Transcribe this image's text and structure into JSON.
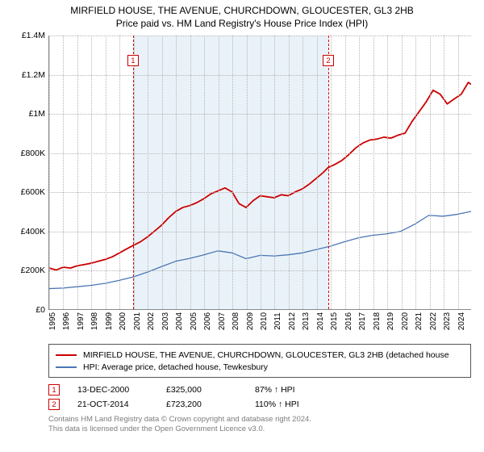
{
  "title": {
    "line1": "MIRFIELD HOUSE, THE AVENUE, CHURCHDOWN, GLOUCESTER, GL3 2HB",
    "line2": "Price paid vs. HM Land Registry's House Price Index (HPI)",
    "fontsize": 12,
    "color": "#000000"
  },
  "chart": {
    "type": "line",
    "background_color": "#ffffff",
    "grid_color": "#b5b5b5",
    "axis_color": "#888888",
    "shade_color": "#e3edf7",
    "xlim": [
      1995,
      2025
    ],
    "ylim": [
      0,
      1400000
    ],
    "ytick_step": 200000,
    "yticks": [
      {
        "v": 0,
        "label": "£0"
      },
      {
        "v": 200000,
        "label": "£200K"
      },
      {
        "v": 400000,
        "label": "£400K"
      },
      {
        "v": 600000,
        "label": "£600K"
      },
      {
        "v": 800000,
        "label": "£800K"
      },
      {
        "v": 1000000,
        "label": "£1M"
      },
      {
        "v": 1200000,
        "label": "£1.2M"
      },
      {
        "v": 1400000,
        "label": "£1.4M"
      }
    ],
    "xticks": [
      1995,
      1996,
      1997,
      1998,
      1999,
      2000,
      2001,
      2002,
      2003,
      2004,
      2005,
      2006,
      2007,
      2008,
      2009,
      2010,
      2011,
      2012,
      2013,
      2014,
      2015,
      2016,
      2017,
      2018,
      2019,
      2020,
      2021,
      2022,
      2023,
      2024
    ],
    "label_fontsize": 10.5,
    "shade_range": [
      2000.95,
      2014.81
    ],
    "events": [
      {
        "id": "1",
        "x": 2000.95,
        "marker_y": 24
      },
      {
        "id": "2",
        "x": 2014.81,
        "marker_y": 24
      }
    ],
    "event_line_color": "#cc0000",
    "series": [
      {
        "name": "price",
        "color": "#cc0000",
        "width": 1.8,
        "points": [
          [
            1995,
            210000
          ],
          [
            1995.5,
            200000
          ],
          [
            1996,
            215000
          ],
          [
            1996.5,
            210000
          ],
          [
            1997,
            222000
          ],
          [
            1997.5,
            228000
          ],
          [
            1998,
            235000
          ],
          [
            1998.5,
            245000
          ],
          [
            1999,
            255000
          ],
          [
            1999.5,
            268000
          ],
          [
            2000,
            288000
          ],
          [
            2000.5,
            308000
          ],
          [
            2000.95,
            325000
          ],
          [
            2001.5,
            345000
          ],
          [
            2002,
            370000
          ],
          [
            2002.5,
            400000
          ],
          [
            2003,
            430000
          ],
          [
            2003.5,
            468000
          ],
          [
            2004,
            500000
          ],
          [
            2004.5,
            520000
          ],
          [
            2005,
            530000
          ],
          [
            2005.5,
            545000
          ],
          [
            2006,
            565000
          ],
          [
            2006.5,
            590000
          ],
          [
            2007,
            605000
          ],
          [
            2007.5,
            620000
          ],
          [
            2008,
            600000
          ],
          [
            2008.5,
            540000
          ],
          [
            2009,
            520000
          ],
          [
            2009.5,
            555000
          ],
          [
            2010,
            580000
          ],
          [
            2010.5,
            575000
          ],
          [
            2011,
            570000
          ],
          [
            2011.5,
            585000
          ],
          [
            2012,
            580000
          ],
          [
            2012.5,
            600000
          ],
          [
            2013,
            615000
          ],
          [
            2013.5,
            640000
          ],
          [
            2014,
            670000
          ],
          [
            2014.5,
            700000
          ],
          [
            2014.81,
            723200
          ],
          [
            2015.3,
            740000
          ],
          [
            2015.8,
            760000
          ],
          [
            2016.3,
            790000
          ],
          [
            2016.8,
            825000
          ],
          [
            2017.3,
            850000
          ],
          [
            2017.8,
            865000
          ],
          [
            2018.3,
            870000
          ],
          [
            2018.8,
            880000
          ],
          [
            2019.3,
            875000
          ],
          [
            2019.8,
            890000
          ],
          [
            2020.3,
            900000
          ],
          [
            2020.8,
            960000
          ],
          [
            2021.3,
            1010000
          ],
          [
            2021.8,
            1060000
          ],
          [
            2022.3,
            1120000
          ],
          [
            2022.8,
            1100000
          ],
          [
            2023.3,
            1050000
          ],
          [
            2023.8,
            1075000
          ],
          [
            2024.3,
            1100000
          ],
          [
            2024.8,
            1160000
          ],
          [
            2025,
            1150000
          ]
        ]
      },
      {
        "name": "hpi",
        "color": "#4a77b4",
        "width": 1.3,
        "points": [
          [
            1995,
            105000
          ],
          [
            1996,
            108000
          ],
          [
            1997,
            115000
          ],
          [
            1998,
            122000
          ],
          [
            1999,
            132000
          ],
          [
            2000,
            148000
          ],
          [
            2001,
            165000
          ],
          [
            2002,
            190000
          ],
          [
            2003,
            218000
          ],
          [
            2004,
            245000
          ],
          [
            2005,
            260000
          ],
          [
            2006,
            278000
          ],
          [
            2007,
            298000
          ],
          [
            2008,
            288000
          ],
          [
            2009,
            258000
          ],
          [
            2010,
            275000
          ],
          [
            2011,
            272000
          ],
          [
            2012,
            278000
          ],
          [
            2013,
            288000
          ],
          [
            2014,
            305000
          ],
          [
            2015,
            322000
          ],
          [
            2016,
            345000
          ],
          [
            2017,
            365000
          ],
          [
            2018,
            378000
          ],
          [
            2019,
            385000
          ],
          [
            2020,
            398000
          ],
          [
            2021,
            435000
          ],
          [
            2022,
            480000
          ],
          [
            2023,
            475000
          ],
          [
            2024,
            485000
          ],
          [
            2025,
            500000
          ]
        ]
      }
    ]
  },
  "legend": {
    "border_color": "#555555",
    "fontsize": 10.5,
    "items": [
      {
        "color": "#cc0000",
        "label": "MIRFIELD HOUSE, THE AVENUE, CHURCHDOWN, GLOUCESTER, GL3 2HB (detached house"
      },
      {
        "color": "#4a77b4",
        "label": "HPI: Average price, detached house, Tewkesbury"
      }
    ]
  },
  "transactions": [
    {
      "id": "1",
      "date": "13-DEC-2000",
      "price": "£325,000",
      "hpi": "87% ↑ HPI"
    },
    {
      "id": "2",
      "date": "21-OCT-2014",
      "price": "£723,200",
      "hpi": "110% ↑ HPI"
    }
  ],
  "footnote": {
    "line1": "Contains HM Land Registry data © Crown copyright and database right 2024.",
    "line2": "This data is licensed under the Open Government Licence v3.0.",
    "color": "#7d7d7d",
    "fontsize": 9.5
  }
}
